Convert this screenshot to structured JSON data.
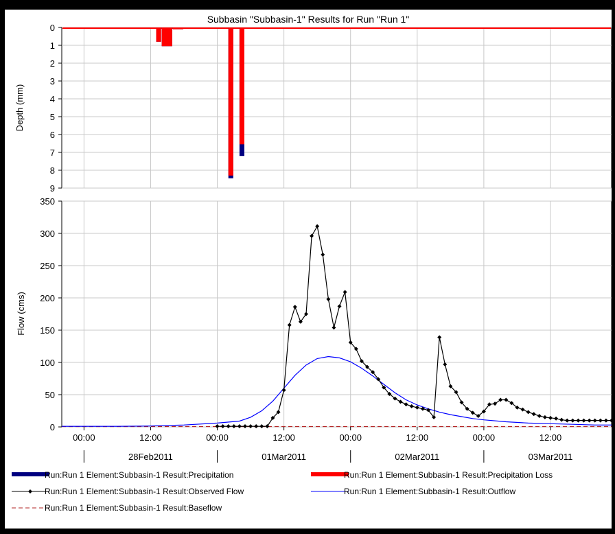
{
  "chart_data": [
    {
      "type": "bar",
      "panel": "precipitation",
      "title": "Subbasin \"Subbasin-1\" Results for Run \"Run 1\"",
      "ylabel": "Depth (mm)",
      "ylim": [
        9,
        0
      ],
      "yticks": [
        0,
        1,
        2,
        3,
        4,
        5,
        6,
        7,
        8,
        9
      ],
      "inverted_y": true,
      "grid": true,
      "series": [
        {
          "name": "Run:Run 1 Element:Subbasin-1 Result:Precipitation",
          "color": "#000080",
          "bars": [
            {
              "start": "2011-02-28T13:00",
              "end": "2011-02-28T14:00",
              "value": 0.8
            },
            {
              "start": "2011-02-28T14:00",
              "end": "2011-02-28T16:00",
              "value": 1.05
            },
            {
              "start": "2011-02-28T16:00",
              "end": "2011-02-28T18:00",
              "value": 0.1
            },
            {
              "start": "2011-03-01T02:00",
              "end": "2011-03-01T03:00",
              "value": 8.45
            },
            {
              "start": "2011-03-01T04:00",
              "end": "2011-03-01T05:00",
              "value": 7.2
            }
          ]
        },
        {
          "name": "Run:Run 1 Element:Subbasin-1 Result:Precipitation Loss",
          "color": "#ff0000",
          "bars": [
            {
              "start": "2011-02-28T13:00",
              "end": "2011-02-28T14:00",
              "value": 0.8
            },
            {
              "start": "2011-02-28T14:00",
              "end": "2011-02-28T16:00",
              "value": 1.05
            },
            {
              "start": "2011-02-28T16:00",
              "end": "2011-02-28T18:00",
              "value": 0.1
            },
            {
              "start": "2011-03-01T02:00",
              "end": "2011-03-01T03:00",
              "value": 8.3
            },
            {
              "start": "2011-03-01T04:00",
              "end": "2011-03-01T05:00",
              "value": 6.55
            }
          ]
        }
      ]
    },
    {
      "type": "line",
      "panel": "flow",
      "ylabel": "Flow (cms)",
      "ylim": [
        0,
        350
      ],
      "yticks": [
        0,
        50,
        100,
        150,
        200,
        250,
        300,
        350
      ],
      "xlim": [
        "2011-02-27T20:00",
        "2011-03-03T23:00"
      ],
      "xticks": [
        "00:00",
        "12:00",
        "00:00",
        "12:00",
        "00:00",
        "12:00",
        "00:00",
        "12:00"
      ],
      "xtick_times": [
        "2011-02-28T00:00",
        "2011-02-28T12:00",
        "2011-03-01T00:00",
        "2011-03-01T12:00",
        "2011-03-02T00:00",
        "2011-03-02T12:00",
        "2011-03-03T00:00",
        "2011-03-03T12:00"
      ],
      "date_labels": [
        "28Feb2011",
        "01Mar2011",
        "02Mar2011",
        "03Mar2011"
      ],
      "date_times": [
        "2011-02-28T12:00",
        "2011-03-01T12:00",
        "2011-03-02T12:00",
        "2011-03-03T12:00"
      ],
      "grid": true,
      "series": [
        {
          "name": "Run:Run 1 Element:Subbasin-1 Result:Observed Flow",
          "color": "#000000",
          "marker": "diamond",
          "times": [
            "2011-03-01T00:00",
            "2011-03-01T01:00",
            "2011-03-01T02:00",
            "2011-03-01T03:00",
            "2011-03-01T04:00",
            "2011-03-01T05:00",
            "2011-03-01T06:00",
            "2011-03-01T07:00",
            "2011-03-01T08:00",
            "2011-03-01T09:00",
            "2011-03-01T10:00",
            "2011-03-01T11:00",
            "2011-03-01T12:00",
            "2011-03-01T13:00",
            "2011-03-01T14:00",
            "2011-03-01T15:00",
            "2011-03-01T16:00",
            "2011-03-01T17:00",
            "2011-03-01T18:00",
            "2011-03-01T19:00",
            "2011-03-01T20:00",
            "2011-03-01T21:00",
            "2011-03-01T22:00",
            "2011-03-01T23:00",
            "2011-03-02T00:00",
            "2011-03-02T01:00",
            "2011-03-02T02:00",
            "2011-03-02T03:00",
            "2011-03-02T04:00",
            "2011-03-02T05:00",
            "2011-03-02T06:00",
            "2011-03-02T07:00",
            "2011-03-02T08:00",
            "2011-03-02T09:00",
            "2011-03-02T10:00",
            "2011-03-02T11:00",
            "2011-03-02T12:00",
            "2011-03-02T13:00",
            "2011-03-02T14:00",
            "2011-03-02T15:00",
            "2011-03-02T16:00",
            "2011-03-02T17:00",
            "2011-03-02T18:00",
            "2011-03-02T19:00",
            "2011-03-02T20:00",
            "2011-03-02T21:00",
            "2011-03-02T22:00",
            "2011-03-02T23:00",
            "2011-03-03T00:00",
            "2011-03-03T01:00",
            "2011-03-03T02:00",
            "2011-03-03T03:00",
            "2011-03-03T04:00",
            "2011-03-03T05:00",
            "2011-03-03T06:00",
            "2011-03-03T07:00",
            "2011-03-03T08:00",
            "2011-03-03T09:00",
            "2011-03-03T10:00",
            "2011-03-03T11:00",
            "2011-03-03T12:00",
            "2011-03-03T13:00",
            "2011-03-03T14:00",
            "2011-03-03T15:00",
            "2011-03-03T16:00",
            "2011-03-03T17:00",
            "2011-03-03T18:00",
            "2011-03-03T19:00",
            "2011-03-03T20:00",
            "2011-03-03T21:00",
            "2011-03-03T22:00",
            "2011-03-03T23:00"
          ],
          "values": [
            1,
            1,
            1,
            1,
            1,
            1,
            1,
            1,
            1,
            1,
            14,
            23,
            57,
            158,
            186,
            163,
            175,
            296,
            311,
            267,
            198,
            154,
            187,
            209,
            131,
            121,
            102,
            93,
            85,
            74,
            61,
            51,
            44,
            39,
            35,
            32,
            30,
            28,
            26,
            15,
            139,
            97,
            63,
            54,
            38,
            28,
            22,
            17,
            24,
            35,
            36,
            42,
            42,
            37,
            30,
            27,
            23,
            20,
            17,
            15,
            14,
            13,
            11,
            10,
            10,
            10,
            10,
            10,
            10,
            10,
            10,
            10
          ]
        },
        {
          "name": "Run:Run 1 Element:Subbasin-1 Result:Outflow",
          "color": "#0000ff",
          "times": [
            "2011-02-27T20:00",
            "2011-02-28T06:00",
            "2011-02-28T12:00",
            "2011-02-28T18:00",
            "2011-03-01T00:00",
            "2011-03-01T04:00",
            "2011-03-01T06:00",
            "2011-03-01T08:00",
            "2011-03-01T10:00",
            "2011-03-01T12:00",
            "2011-03-01T14:00",
            "2011-03-01T16:00",
            "2011-03-01T18:00",
            "2011-03-01T20:00",
            "2011-03-01T22:00",
            "2011-03-02T00:00",
            "2011-03-02T02:00",
            "2011-03-02T04:00",
            "2011-03-02T06:00",
            "2011-03-02T08:00",
            "2011-03-02T10:00",
            "2011-03-02T12:00",
            "2011-03-02T14:00",
            "2011-03-02T16:00",
            "2011-03-02T18:00",
            "2011-03-02T20:00",
            "2011-03-02T22:00",
            "2011-03-03T00:00",
            "2011-03-03T04:00",
            "2011-03-03T08:00",
            "2011-03-03T12:00",
            "2011-03-03T16:00",
            "2011-03-03T20:00",
            "2011-03-03T23:00"
          ],
          "values": [
            1,
            1,
            1.5,
            3,
            6,
            9,
            15,
            25,
            40,
            60,
            80,
            96,
            106,
            109,
            107,
            101,
            91,
            79,
            66,
            53,
            42,
            34,
            28,
            23,
            19,
            16,
            13,
            11,
            8,
            6,
            5,
            4,
            3,
            3
          ]
        },
        {
          "name": "Run:Run 1 Element:Subbasin-1 Result:Baseflow",
          "color": "#b22222",
          "dash": true,
          "times": [
            "2011-02-27T20:00",
            "2011-03-03T23:00"
          ],
          "values": [
            0.5,
            0.5
          ]
        }
      ]
    }
  ],
  "legend": [
    {
      "label": "Run:Run 1 Element:Subbasin-1 Result:Precipitation",
      "kind": "bar",
      "color": "#000080"
    },
    {
      "label": "Run:Run 1 Element:Subbasin-1 Result:Precipitation Loss",
      "kind": "bar",
      "color": "#ff0000"
    },
    {
      "label": "Run:Run 1 Element:Subbasin-1 Result:Observed Flow",
      "kind": "marker-line",
      "color": "#000000"
    },
    {
      "label": "Run:Run 1 Element:Subbasin-1 Result:Outflow",
      "kind": "line",
      "color": "#0000ff"
    },
    {
      "label": "Run:Run 1 Element:Subbasin-1 Result:Baseflow",
      "kind": "dash",
      "color": "#b22222"
    }
  ]
}
